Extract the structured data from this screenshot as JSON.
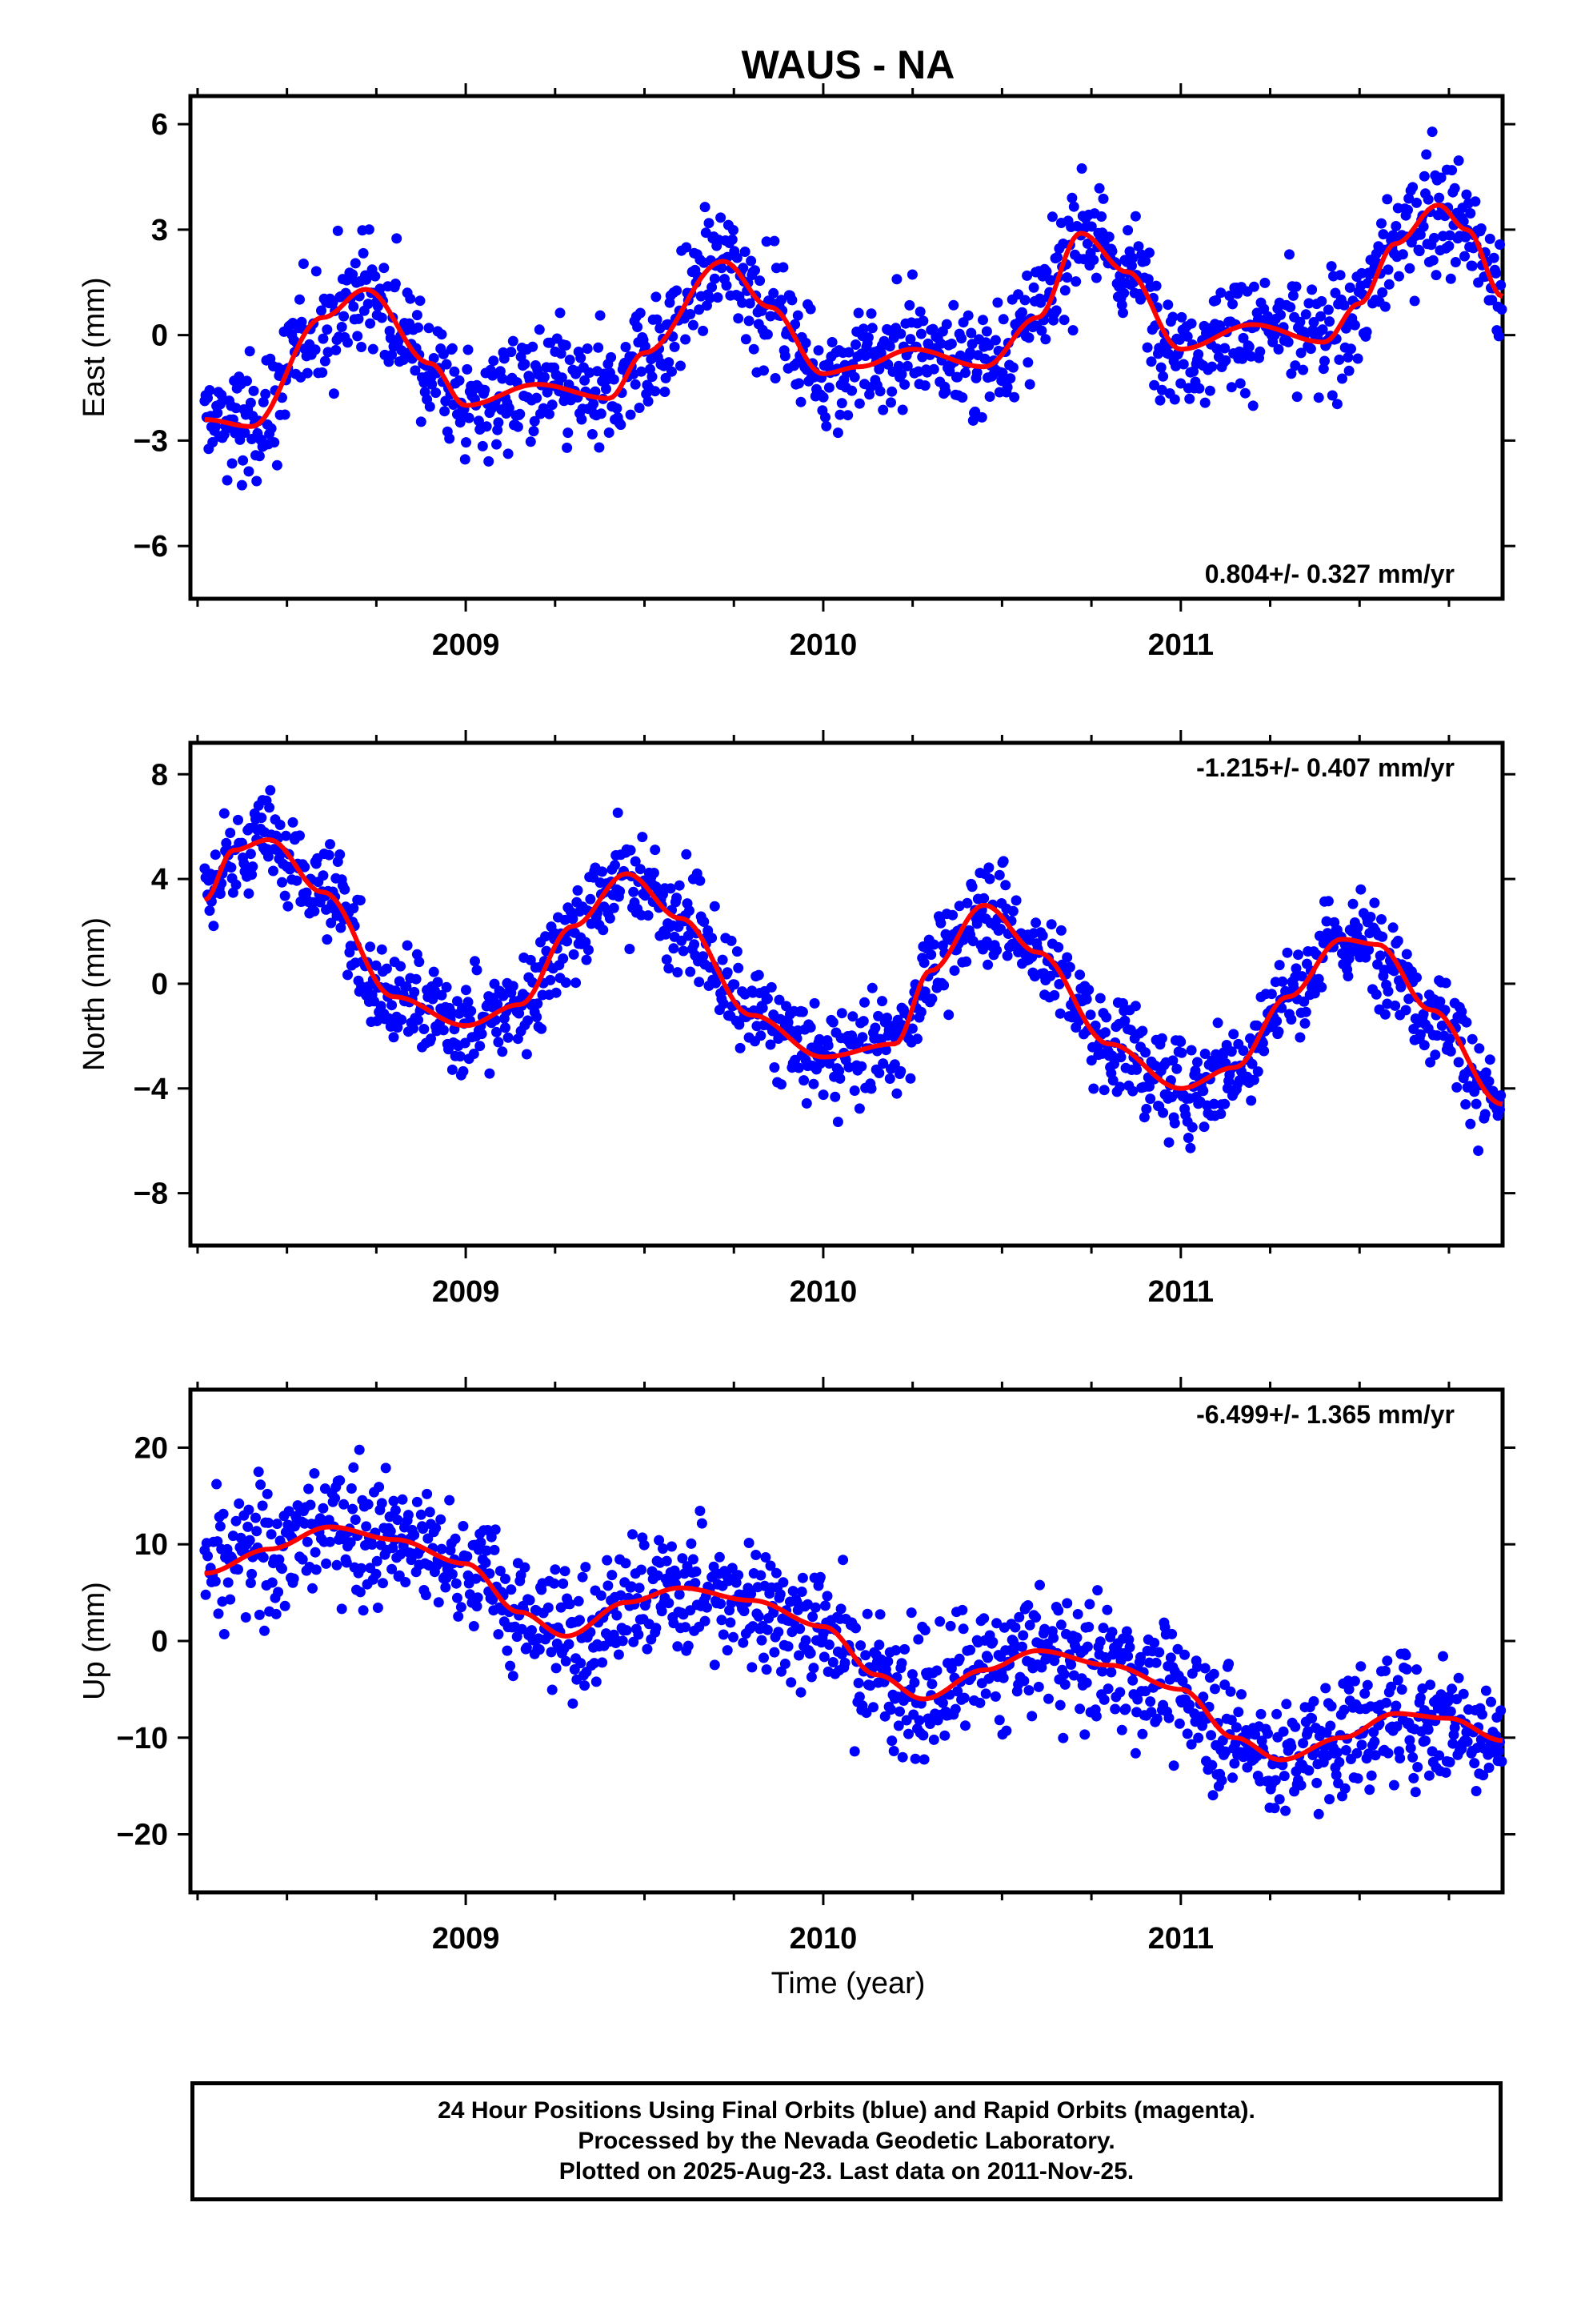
{
  "title": "WAUS - NA",
  "xlabel": "Time (year)",
  "footer": {
    "line1": "24 Hour Positions Using Final Orbits (blue) and Rapid Orbits (magenta).",
    "line2": "Processed by the Nevada Geodetic Laboratory.",
    "line3": "Plotted on 2025-Aug-23. Last data on 2011-Nov-25."
  },
  "colors": {
    "points": "#0000ff",
    "fit": "#ff0000",
    "frame": "#000000"
  },
  "chart_data": [
    {
      "type": "scatter",
      "component": "east",
      "ylabel": "East (mm)",
      "rate_label": "0.804+/- 0.327 mm/yr",
      "rate_position": "bottom-right",
      "xlim": [
        2008.23,
        2011.9
      ],
      "ylim": [
        -7.5,
        6.8
      ],
      "xticks": [
        2009,
        2010,
        2011
      ],
      "yticks": [
        -6,
        -3,
        0,
        3,
        6
      ],
      "time_range": [
        2008.27,
        2011.9
      ],
      "fit_curve": {
        "x": [
          2008.27,
          2008.4,
          2008.6,
          2008.72,
          2008.9,
          2009.0,
          2009.2,
          2009.4,
          2009.5,
          2009.72,
          2009.85,
          2010.0,
          2010.1,
          2010.25,
          2010.45,
          2010.6,
          2010.72,
          2010.85,
          2011.0,
          2011.2,
          2011.4,
          2011.5,
          2011.6,
          2011.72,
          2011.8,
          2011.9
        ],
        "y": [
          -2.4,
          -2.6,
          0.5,
          1.3,
          -0.8,
          -2.0,
          -1.4,
          -1.8,
          -0.5,
          2.1,
          0.8,
          -1.1,
          -0.9,
          -0.4,
          -0.9,
          0.5,
          2.9,
          1.8,
          -0.4,
          0.3,
          -0.2,
          0.9,
          2.6,
          3.7,
          3.0,
          1.1
        ]
      }
    },
    {
      "type": "scatter",
      "component": "north",
      "ylabel": "North (mm)",
      "rate_label": "-1.215+/- 0.407 mm/yr",
      "rate_position": "top-right",
      "xlim": [
        2008.23,
        2011.9
      ],
      "ylim": [
        -10,
        9.2
      ],
      "xticks": [
        2009,
        2010,
        2011
      ],
      "yticks": [
        -8,
        -4,
        0,
        4,
        8
      ],
      "time_range": [
        2008.27,
        2011.9
      ],
      "fit_curve": {
        "x": [
          2008.27,
          2008.35,
          2008.45,
          2008.6,
          2008.8,
          2009.0,
          2009.15,
          2009.3,
          2009.45,
          2009.6,
          2009.8,
          2010.0,
          2010.2,
          2010.3,
          2010.45,
          2010.6,
          2010.8,
          2011.0,
          2011.15,
          2011.3,
          2011.45,
          2011.55,
          2011.7,
          2011.9
        ],
        "y": [
          3.2,
          5.1,
          5.5,
          3.5,
          -0.5,
          -1.6,
          -0.8,
          2.2,
          4.2,
          2.5,
          -1.2,
          -2.8,
          -2.3,
          0.5,
          3.0,
          1.2,
          -2.3,
          -4.0,
          -3.2,
          -0.5,
          1.7,
          1.5,
          -1.0,
          -4.6
        ]
      }
    },
    {
      "type": "scatter",
      "component": "up",
      "ylabel": "Up (mm)",
      "rate_label": "-6.499+/- 1.365 mm/yr",
      "rate_position": "top-right",
      "xlim": [
        2008.23,
        2011.9
      ],
      "ylim": [
        -26,
        26
      ],
      "xticks": [
        2009,
        2010,
        2011
      ],
      "yticks": [
        -20,
        -10,
        0,
        10,
        20
      ],
      "time_range": [
        2008.27,
        2011.9
      ],
      "fit_curve": {
        "x": [
          2008.27,
          2008.45,
          2008.62,
          2008.8,
          2009.0,
          2009.15,
          2009.28,
          2009.45,
          2009.6,
          2009.8,
          2010.0,
          2010.15,
          2010.28,
          2010.45,
          2010.6,
          2010.8,
          2011.0,
          2011.15,
          2011.28,
          2011.45,
          2011.6,
          2011.75,
          2011.9
        ],
        "y": [
          7.0,
          9.5,
          11.8,
          10.5,
          8.0,
          3.0,
          0.5,
          4.0,
          5.5,
          4.2,
          1.5,
          -3.5,
          -6.0,
          -3.0,
          -1.0,
          -2.5,
          -5.0,
          -10.0,
          -12.3,
          -10.0,
          -7.5,
          -8.0,
          -10.3
        ]
      }
    }
  ]
}
